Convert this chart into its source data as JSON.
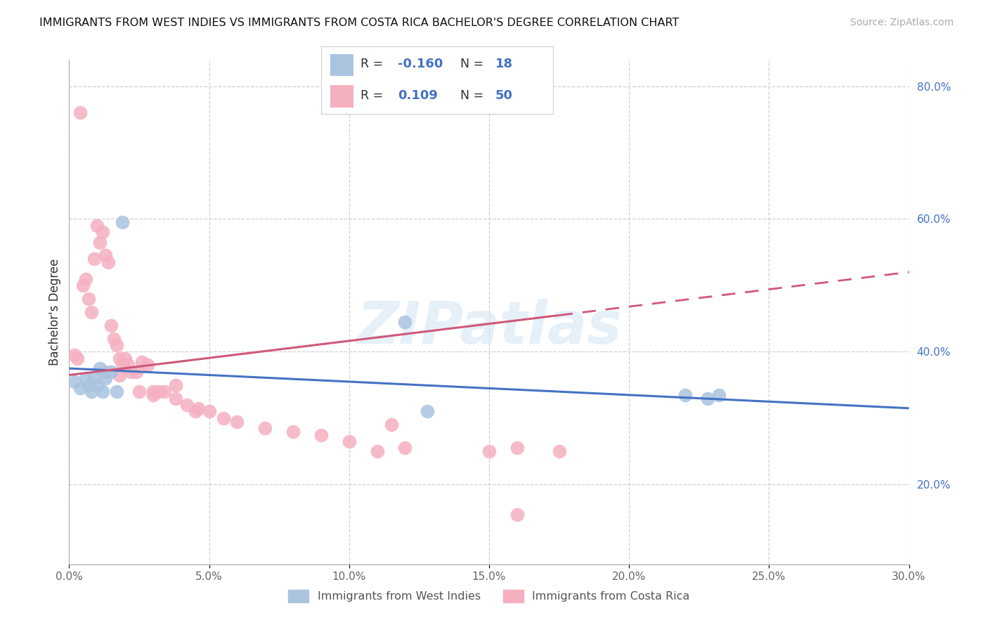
{
  "title": "IMMIGRANTS FROM WEST INDIES VS IMMIGRANTS FROM COSTA RICA BACHELOR'S DEGREE CORRELATION CHART",
  "source": "Source: ZipAtlas.com",
  "ylabel": "Bachelor's Degree",
  "xlim": [
    0.0,
    0.3
  ],
  "ylim": [
    0.08,
    0.84
  ],
  "xtick_values": [
    0.0,
    0.05,
    0.1,
    0.15,
    0.2,
    0.25,
    0.3
  ],
  "xtick_labels": [
    "0.0%",
    "5.0%",
    "10.0%",
    "15.0%",
    "20.0%",
    "25.0%",
    "30.0%"
  ],
  "ytick_values": [
    0.2,
    0.4,
    0.6,
    0.8
  ],
  "ytick_labels": [
    "20.0%",
    "40.0%",
    "60.0%",
    "80.0%"
  ],
  "blue_fill": "#aac4e0",
  "pink_fill": "#f5b0c0",
  "blue_line": "#4472C4",
  "pink_line": "#d05878",
  "legend_R_blue": "-0.160",
  "legend_N_blue": "18",
  "legend_R_pink": "0.109",
  "legend_N_pink": "50",
  "legend_label_blue": "Immigrants from West Indies",
  "legend_label_pink": "Immigrants from Costa Rica",
  "watermark": "ZIPatlas",
  "blue_line_x0": 0.0,
  "blue_line_y0": 0.375,
  "blue_line_x1": 0.3,
  "blue_line_y1": 0.315,
  "pink_line_x0": 0.0,
  "pink_line_y0": 0.365,
  "pink_line_solid_x1": 0.175,
  "pink_line_solid_y1": 0.455,
  "pink_line_dash_x1": 0.3,
  "pink_line_dash_y1": 0.52,
  "blue_x": [
    0.002,
    0.004,
    0.006,
    0.007,
    0.008,
    0.009,
    0.01,
    0.011,
    0.012,
    0.013,
    0.015,
    0.017,
    0.019,
    0.12,
    0.22,
    0.228,
    0.232,
    0.128
  ],
  "blue_y": [
    0.355,
    0.345,
    0.36,
    0.35,
    0.34,
    0.36,
    0.35,
    0.375,
    0.34,
    0.36,
    0.37,
    0.34,
    0.595,
    0.445,
    0.335,
    0.33,
    0.335,
    0.31
  ],
  "pink_x": [
    0.002,
    0.004,
    0.005,
    0.006,
    0.007,
    0.008,
    0.009,
    0.01,
    0.011,
    0.012,
    0.013,
    0.014,
    0.015,
    0.016,
    0.017,
    0.018,
    0.019,
    0.02,
    0.021,
    0.022,
    0.024,
    0.026,
    0.028,
    0.03,
    0.032,
    0.034,
    0.038,
    0.042,
    0.046,
    0.05,
    0.055,
    0.06,
    0.07,
    0.08,
    0.09,
    0.1,
    0.11,
    0.12,
    0.15,
    0.16,
    0.175,
    0.013,
    0.018,
    0.025,
    0.03,
    0.038,
    0.045,
    0.16,
    0.115,
    0.003
  ],
  "pink_y": [
    0.395,
    0.76,
    0.5,
    0.51,
    0.48,
    0.46,
    0.54,
    0.59,
    0.565,
    0.58,
    0.545,
    0.535,
    0.44,
    0.42,
    0.41,
    0.39,
    0.38,
    0.39,
    0.38,
    0.37,
    0.37,
    0.385,
    0.38,
    0.34,
    0.34,
    0.34,
    0.35,
    0.32,
    0.315,
    0.31,
    0.3,
    0.295,
    0.285,
    0.28,
    0.275,
    0.265,
    0.25,
    0.255,
    0.25,
    0.255,
    0.25,
    0.37,
    0.365,
    0.34,
    0.335,
    0.33,
    0.31,
    0.155,
    0.29,
    0.39
  ]
}
